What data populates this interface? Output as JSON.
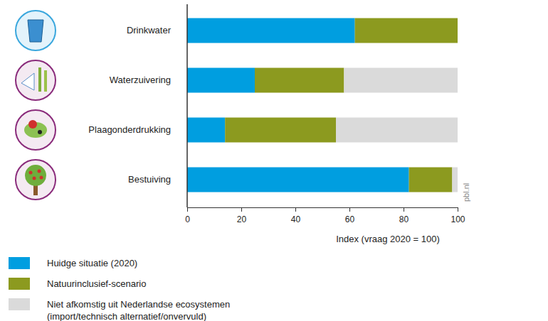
{
  "chart_data": {
    "type": "bar",
    "orientation": "horizontal",
    "stacked": true,
    "categories": [
      "Drinkwater",
      "Waterzuivering",
      "Plaagonderdrukking",
      "Bestuiving"
    ],
    "series": [
      {
        "name": "Huidge situatie (2020)",
        "color": "#009ee0",
        "values": [
          62,
          25,
          14,
          82
        ]
      },
      {
        "name": "Natuurinclusief-scenario",
        "color": "#8c9a1f",
        "values": [
          38,
          33,
          41,
          16
        ]
      },
      {
        "name": "Niet afkomstig uit Nederlandse ecosystemen\n(import/technisch alternatief/onvervuld)",
        "color": "#dadada",
        "values": [
          0,
          42,
          45,
          2
        ]
      }
    ],
    "x_label": "Index (vraag 2020 = 100)",
    "xlim": [
      0,
      100
    ],
    "xticks": [
      0,
      20,
      40,
      60,
      80,
      100
    ],
    "grid": false,
    "annotations": [
      "pbl.nl"
    ]
  }
}
